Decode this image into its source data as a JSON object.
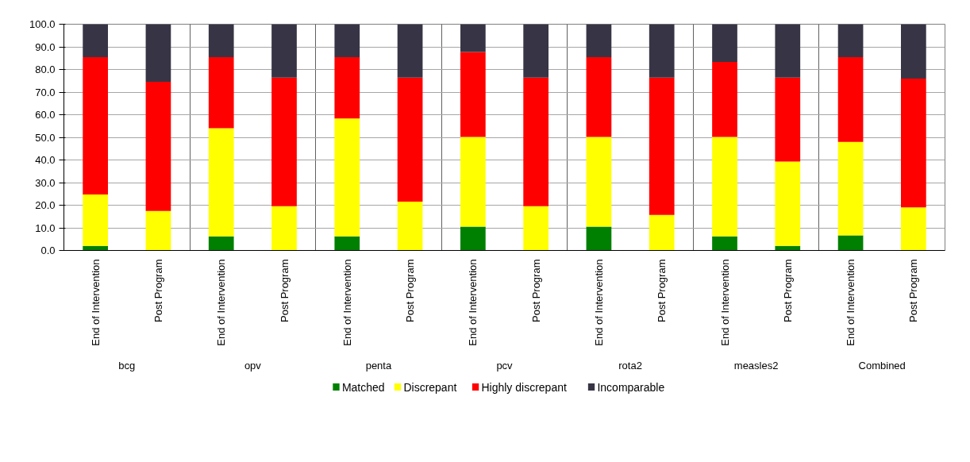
{
  "chart_data": {
    "type": "bar",
    "stacked": true,
    "categories": [
      "End of Intervention",
      "Post Program",
      "End of Intervention",
      "Post Program",
      "End of Intervention",
      "Post Program",
      "End of Intervention",
      "Post Program",
      "End of Intervention",
      "Post Program",
      "End of Intervention",
      "Post Program",
      "End of Intervention",
      "Post Program"
    ],
    "annotations": [
      "bcg",
      "opv",
      "penta",
      "pcv",
      "rota2",
      "measles2",
      "Combined"
    ],
    "series": [
      {
        "name": "Matched",
        "color": "#008000",
        "values": [
          2.0,
          0,
          6.2,
          0,
          6.2,
          0,
          10.5,
          0,
          10.5,
          0,
          6.2,
          2.0,
          6.7,
          0
        ]
      },
      {
        "name": "Discrepant",
        "color": "#ffff00",
        "values": [
          22.7,
          17.5,
          47.8,
          19.6,
          52.1,
          21.6,
          39.7,
          19.6,
          39.7,
          15.7,
          44.0,
          37.3,
          41.3,
          19.0
        ]
      },
      {
        "name": "Highly discrepant",
        "color": "#ff0000",
        "values": [
          60.7,
          57.1,
          31.4,
          56.8,
          27.1,
          54.8,
          37.5,
          56.8,
          35.2,
          60.7,
          33.1,
          37.1,
          37.4,
          57.0
        ]
      },
      {
        "name": "Incomparable",
        "color": "#373545",
        "values": [
          14.6,
          25.4,
          14.6,
          23.6,
          14.6,
          23.6,
          12.3,
          23.6,
          14.6,
          23.6,
          16.7,
          23.6,
          14.6,
          24.0
        ]
      }
    ],
    "ylim": [
      0,
      100
    ],
    "yticks": [
      {
        "value": 0,
        "label": "0.0"
      },
      {
        "value": 10,
        "label": "10.0"
      },
      {
        "value": 20,
        "label": "20.0"
      },
      {
        "value": 30,
        "label": "30.0"
      },
      {
        "value": 40,
        "label": "40.0"
      },
      {
        "value": 50,
        "label": "50.0"
      },
      {
        "value": 60,
        "label": "60.0"
      },
      {
        "value": 70,
        "label": "70.0"
      },
      {
        "value": 80,
        "label": "80.0"
      },
      {
        "value": 90,
        "label": "90.0"
      },
      {
        "value": 100,
        "label": "100.0"
      }
    ],
    "grid": true,
    "legend": "bottom"
  }
}
